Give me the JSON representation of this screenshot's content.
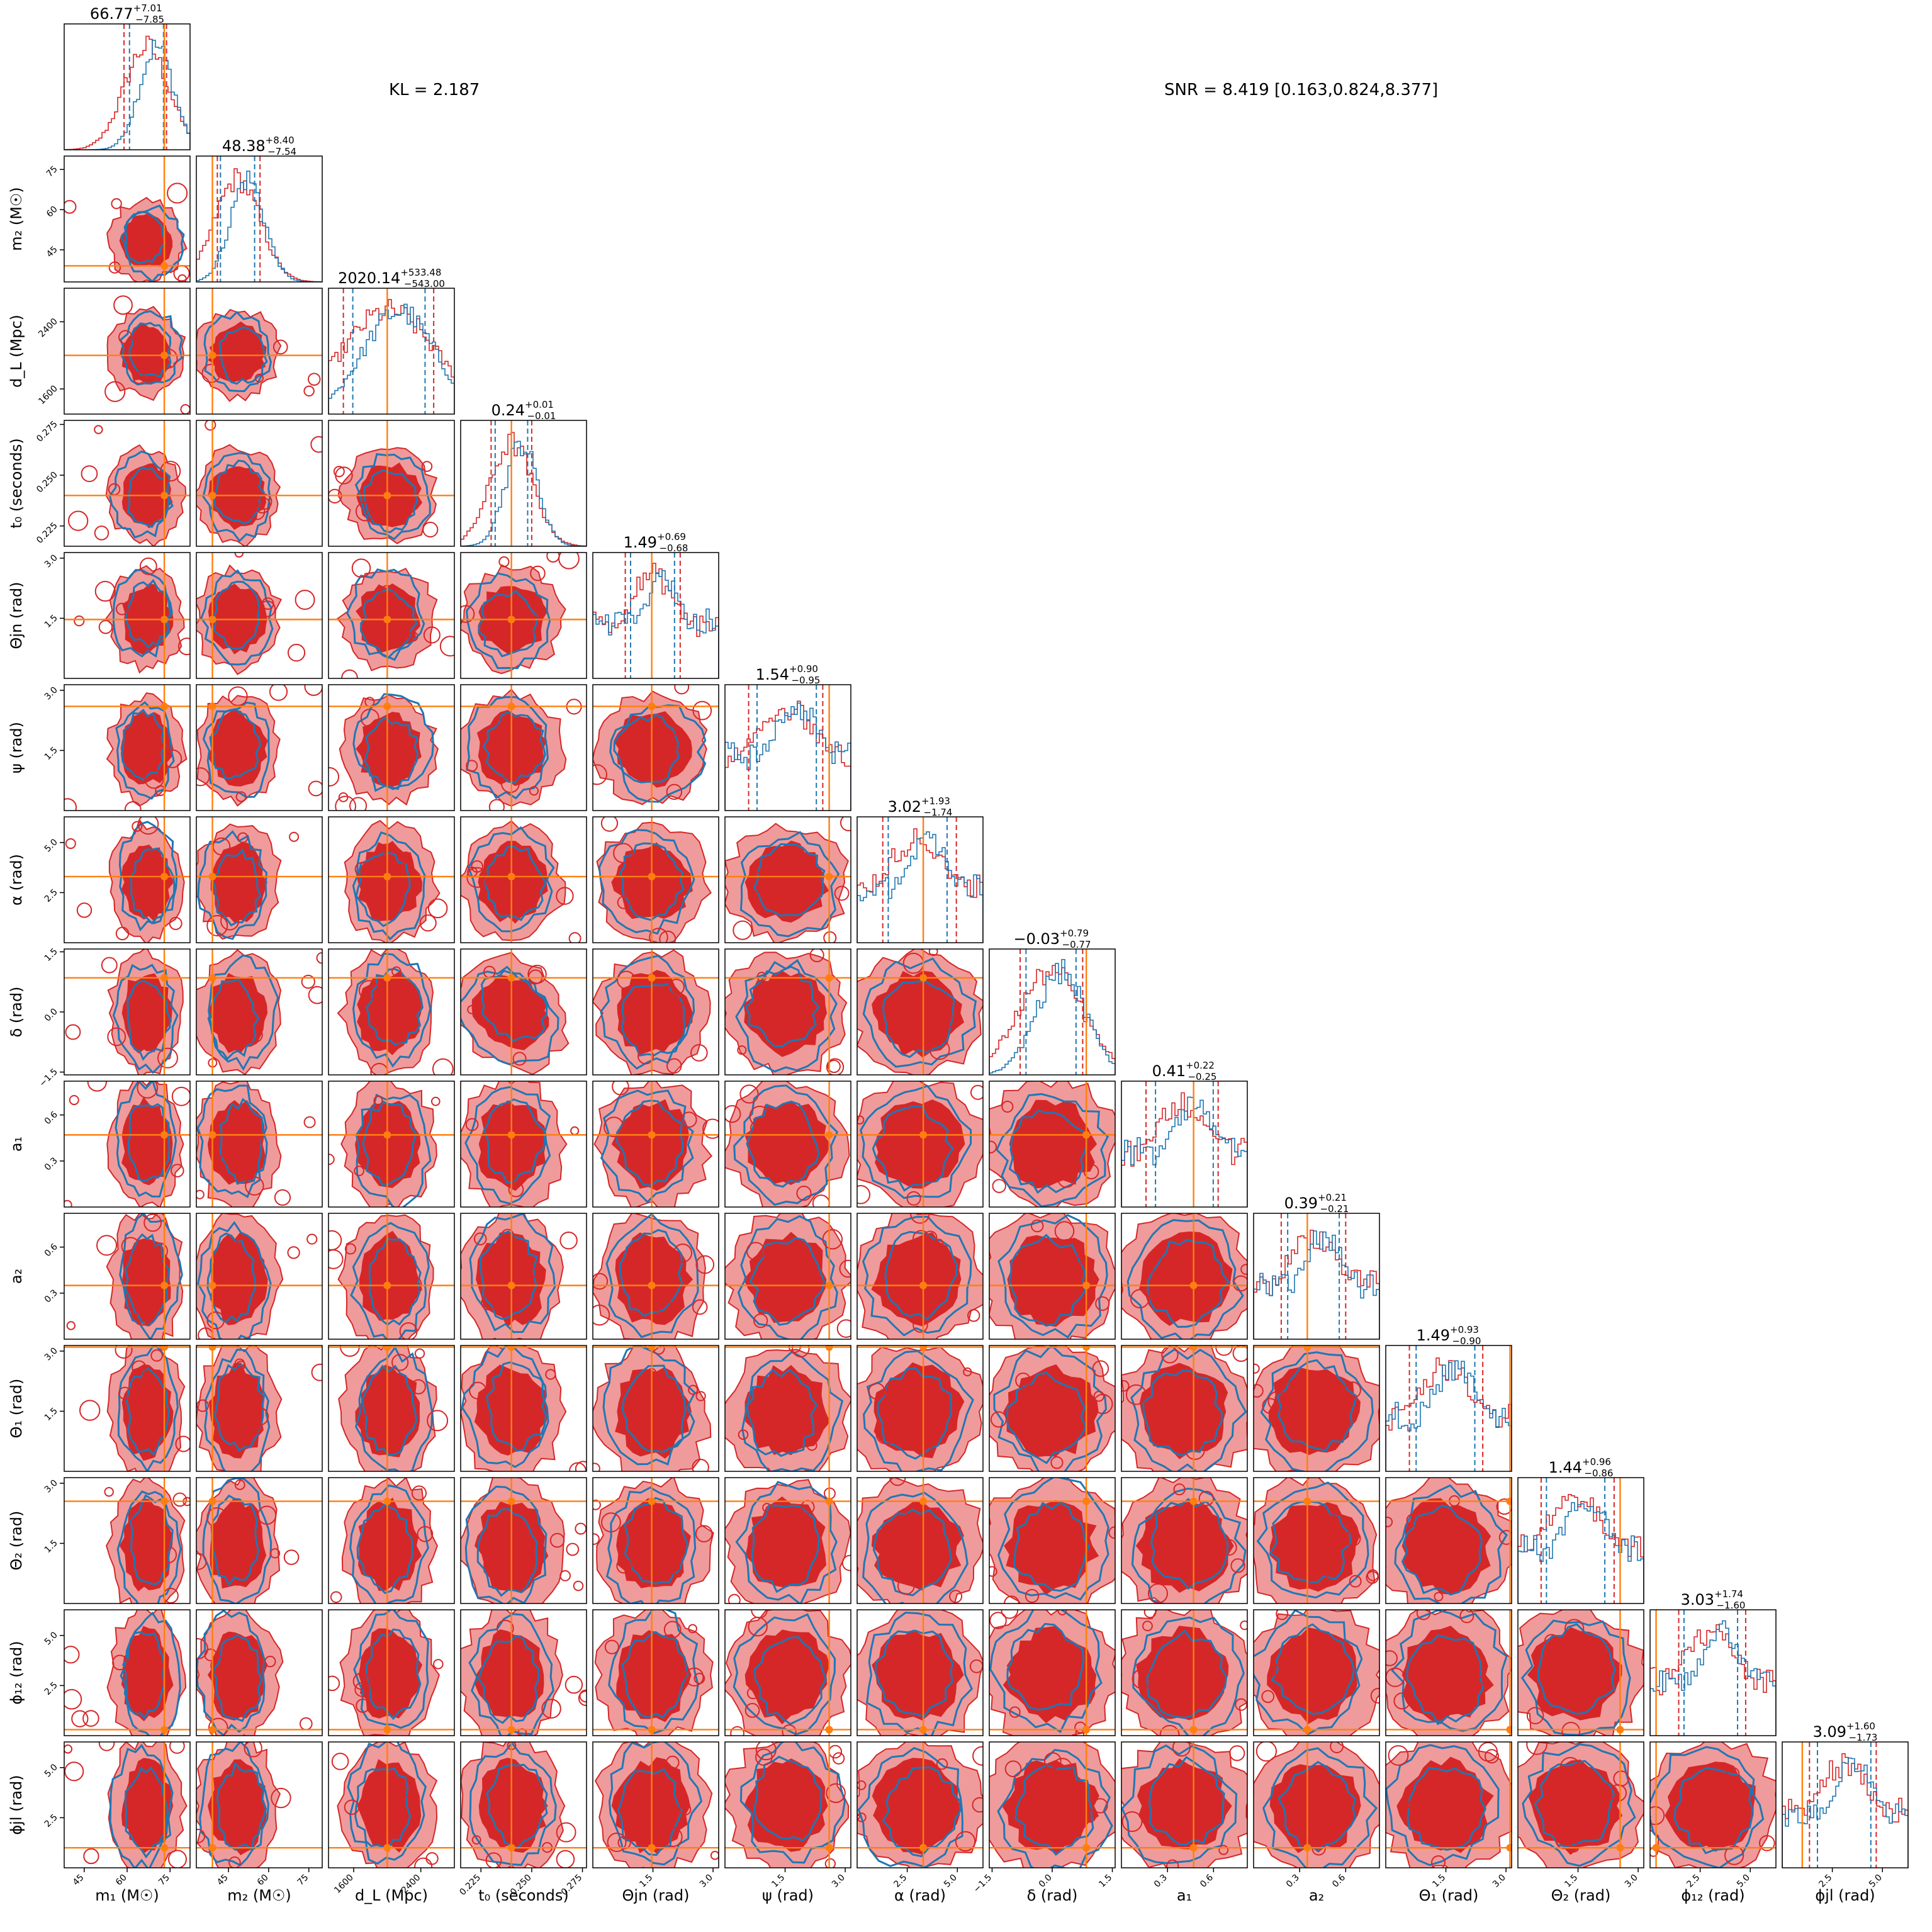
{
  "header": {
    "kl_text": "KL = 2.187",
    "snr_text": "SNR = 8.419 [0.163,0.824,8.377]"
  },
  "chart_data": {
    "type": "corner",
    "colors": {
      "series_a": "#1f77b4",
      "series_b": "#d62728",
      "series_b_fill_light": "#f09b9b",
      "truth": "#ff7f0e"
    },
    "legend": "none",
    "grid": false,
    "parameters": [
      {
        "label": "m₁ (M☉)",
        "key": "m1",
        "range": [
          38,
          82
        ],
        "ticks": [
          {
            "v": 45,
            "t": "45"
          },
          {
            "v": 60,
            "t": "60"
          },
          {
            "v": 75,
            "t": "75"
          }
        ],
        "truth": 73,
        "median": 66.77,
        "plus": "+7.01",
        "minus": "−7.85",
        "title_value": "66.77"
      },
      {
        "label": "m₂ (M☉)",
        "key": "m2",
        "range": [
          33,
          80
        ],
        "ticks": [
          {
            "v": 45,
            "t": "45"
          },
          {
            "v": 60,
            "t": "60"
          },
          {
            "v": 75,
            "t": "75"
          }
        ],
        "truth": 39,
        "median": 48.38,
        "plus": "+8.40",
        "minus": "−7.54",
        "title_value": "48.38"
      },
      {
        "label": "d_L (Mpc)",
        "key": "dL",
        "range": [
          1300,
          2800
        ],
        "ticks": [
          {
            "v": 1600,
            "t": "1600"
          },
          {
            "v": 2400,
            "t": "2400"
          }
        ],
        "truth": 2000,
        "median": 2020.14,
        "plus": "+533.48",
        "minus": "−543.00",
        "title_value": "2020.14"
      },
      {
        "label": "t₀ (seconds)",
        "key": "t0",
        "range": [
          0.215,
          0.277
        ],
        "ticks": [
          {
            "v": 0.225,
            "t": "0.225"
          },
          {
            "v": 0.25,
            "t": "0.250"
          },
          {
            "v": 0.275,
            "t": "0.275"
          }
        ],
        "truth": 0.24,
        "median": 0.24,
        "plus": "+0.01",
        "minus": "−0.01",
        "title_value": "0.24"
      },
      {
        "label": "Θjn (rad)",
        "key": "thetajn",
        "range": [
          0,
          3.14
        ],
        "ticks": [
          {
            "v": 1.5,
            "t": "1.5"
          },
          {
            "v": 3.0,
            "t": "3.0"
          }
        ],
        "truth": 1.47,
        "median": 1.49,
        "plus": "+0.69",
        "minus": "−0.68",
        "title_value": "1.49"
      },
      {
        "label": "ψ (rad)",
        "key": "psi",
        "range": [
          0,
          3.14
        ],
        "ticks": [
          {
            "v": 1.5,
            "t": "1.5"
          },
          {
            "v": 3.0,
            "t": "3.0"
          }
        ],
        "truth": 2.6,
        "median": 1.54,
        "plus": "+0.90",
        "minus": "−0.95",
        "title_value": "1.54"
      },
      {
        "label": "α (rad)",
        "key": "alpha",
        "range": [
          0,
          6.28
        ],
        "ticks": [
          {
            "v": 2.5,
            "t": "2.5"
          },
          {
            "v": 5.0,
            "t": "5.0"
          }
        ],
        "truth": 3.3,
        "median": 3.02,
        "plus": "+1.93",
        "minus": "−1.74",
        "title_value": "3.02"
      },
      {
        "label": "δ (rad)",
        "key": "delta",
        "range": [
          -1.57,
          1.57
        ],
        "ticks": [
          {
            "v": -1.5,
            "t": "−1.5"
          },
          {
            "v": 0.0,
            "t": "0.0"
          },
          {
            "v": 1.5,
            "t": "1.5"
          }
        ],
        "truth": 0.85,
        "median": -0.03,
        "plus": "+0.79",
        "minus": "−0.77",
        "title_value": "−0.03"
      },
      {
        "label": "a₁",
        "key": "a1",
        "range": [
          0,
          0.82
        ],
        "ticks": [
          {
            "v": 0.3,
            "t": "0.3"
          },
          {
            "v": 0.6,
            "t": "0.6"
          }
        ],
        "truth": 0.47,
        "median": 0.41,
        "plus": "+0.22",
        "minus": "−0.25",
        "title_value": "0.41"
      },
      {
        "label": "a₂",
        "key": "a2",
        "range": [
          0,
          0.82
        ],
        "ticks": [
          {
            "v": 0.3,
            "t": "0.3"
          },
          {
            "v": 0.6,
            "t": "0.6"
          }
        ],
        "truth": 0.35,
        "median": 0.39,
        "plus": "+0.21",
        "minus": "−0.21",
        "title_value": "0.39"
      },
      {
        "label": "Θ₁ (rad)",
        "key": "theta1",
        "range": [
          0,
          3.14
        ],
        "ticks": [
          {
            "v": 1.5,
            "t": "1.5"
          },
          {
            "v": 3.0,
            "t": "3.0"
          }
        ],
        "truth": 3.1,
        "median": 1.49,
        "plus": "+0.93",
        "minus": "−0.90",
        "title_value": "1.49"
      },
      {
        "label": "Θ₂ (rad)",
        "key": "theta2",
        "range": [
          0,
          3.14
        ],
        "ticks": [
          {
            "v": 1.5,
            "t": "1.5"
          },
          {
            "v": 3.0,
            "t": "3.0"
          }
        ],
        "truth": 2.55,
        "median": 1.44,
        "plus": "+0.96",
        "minus": "−0.86",
        "title_value": "1.44"
      },
      {
        "label": "ϕ₁₂ (rad)",
        "key": "phi12",
        "range": [
          0,
          6.28
        ],
        "ticks": [
          {
            "v": 2.5,
            "t": "2.5"
          },
          {
            "v": 5.0,
            "t": "5.0"
          }
        ],
        "truth": 0.3,
        "median": 3.03,
        "plus": "+1.74",
        "minus": "−1.60",
        "title_value": "3.03"
      },
      {
        "label": "ϕjl (rad)",
        "key": "phijl",
        "range": [
          0,
          6.28
        ],
        "ticks": [
          {
            "v": 2.5,
            "t": "2.5"
          },
          {
            "v": 5.0,
            "t": "5.0"
          }
        ],
        "truth": 1.0,
        "median": 3.09,
        "plus": "+1.60",
        "minus": "−1.73",
        "title_value": "3.09"
      }
    ]
  }
}
